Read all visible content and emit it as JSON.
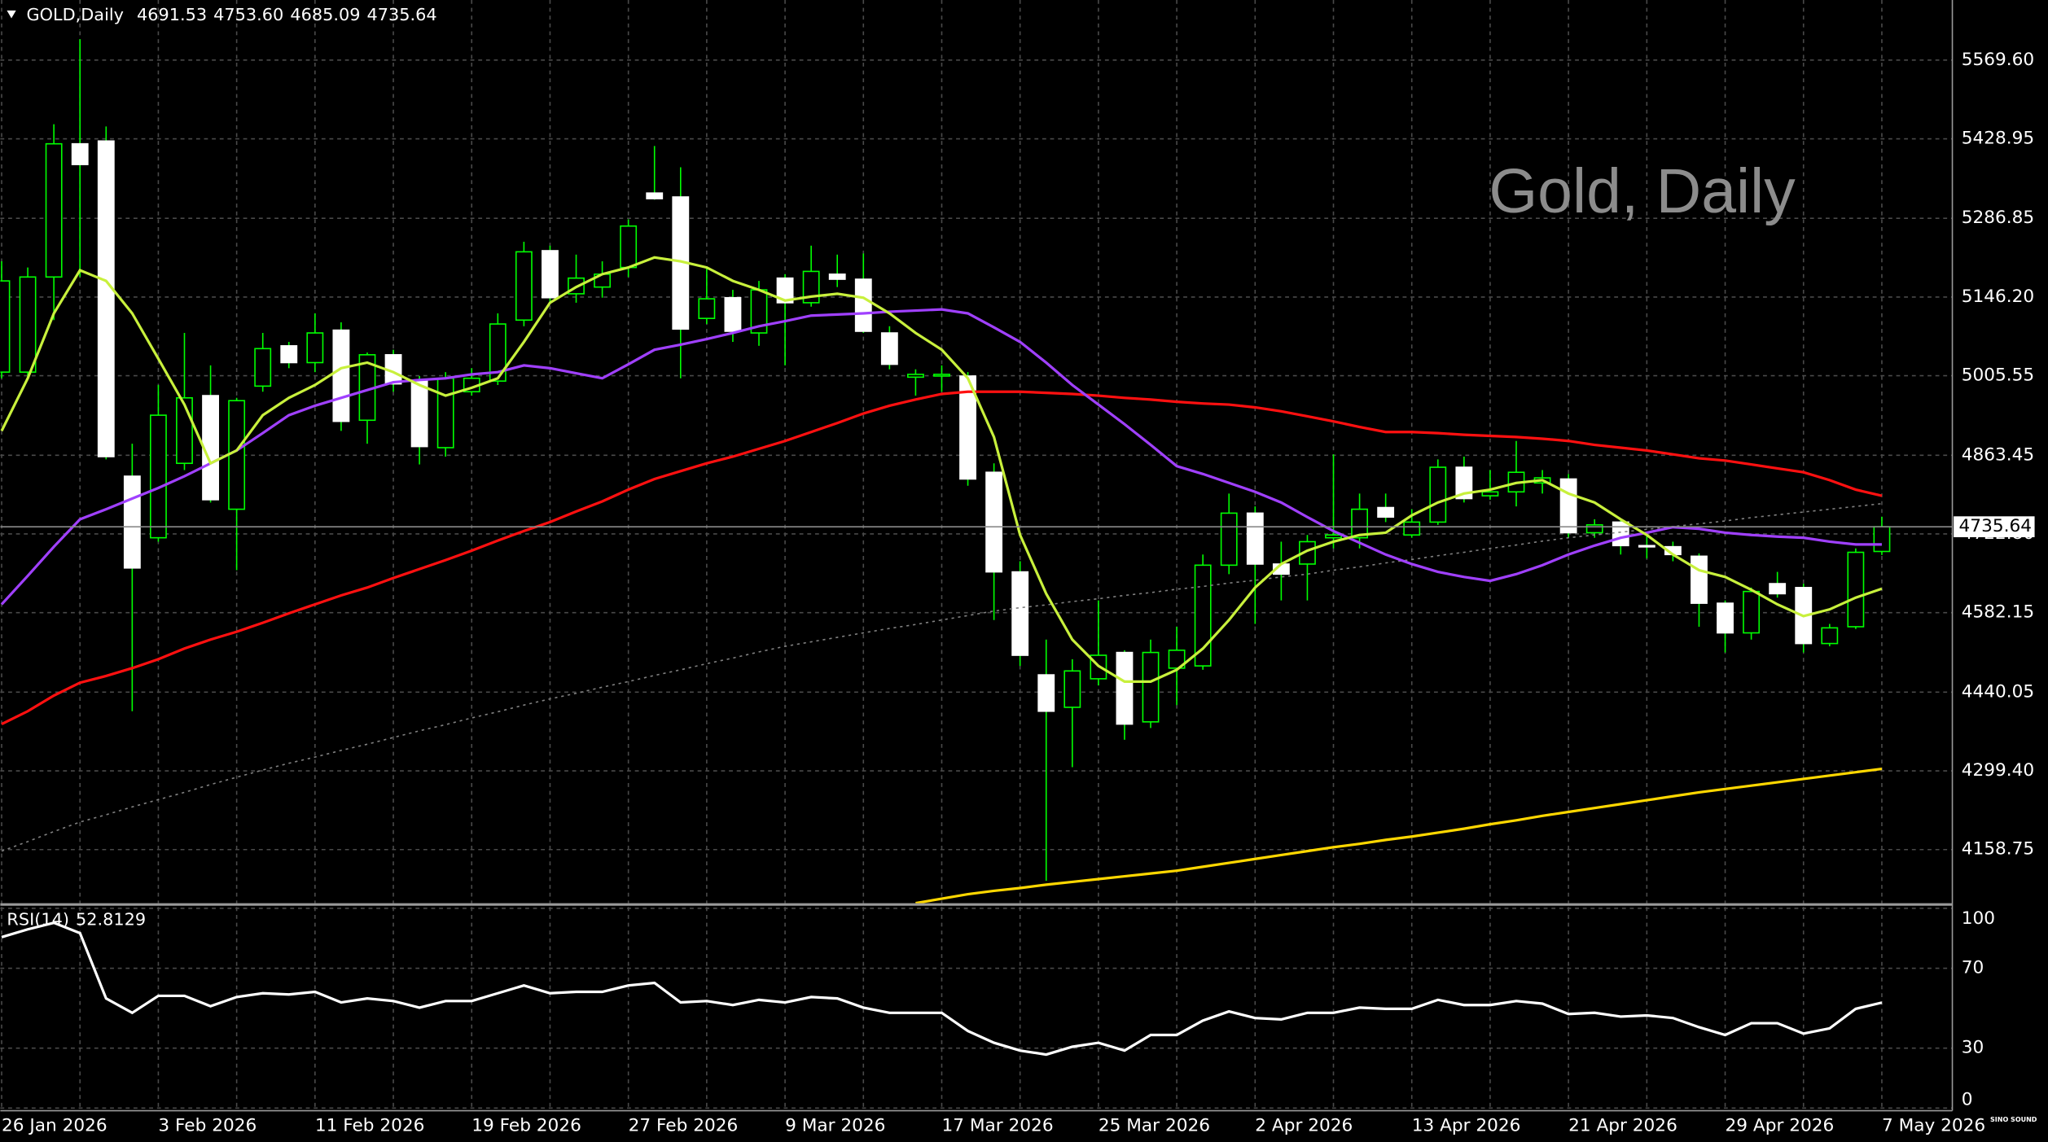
{
  "chart_data": [
    {
      "type": "candlestick",
      "title": "GOLD,Daily",
      "watermark": "Gold, Daily",
      "logo": "SINO SOUND",
      "ohlc_labels": [
        "4691.53",
        "4753.60",
        "4685.09",
        "4735.64"
      ],
      "categories": [
        "26 Jan 2026",
        null,
        null,
        null,
        null,
        null,
        "3 Feb 2026",
        null,
        null,
        null,
        null,
        null,
        "11 Feb 2026",
        null,
        null,
        null,
        null,
        null,
        "19 Feb 2026",
        null,
        null,
        null,
        null,
        null,
        "27 Feb 2026",
        null,
        null,
        null,
        null,
        null,
        "9 Mar 2026",
        null,
        null,
        null,
        null,
        null,
        "17 Mar 2026",
        null,
        null,
        null,
        null,
        null,
        "25 Mar 2026",
        null,
        null,
        null,
        null,
        null,
        "2 Apr 2026",
        null,
        null,
        null,
        null,
        null,
        "13 Apr 2026",
        null,
        null,
        null,
        null,
        null,
        "21 Apr 2026",
        null,
        null,
        null,
        null,
        null,
        "29 Apr 2026",
        null,
        null,
        null,
        null,
        null,
        "7 May 2026"
      ],
      "open": [
        5012,
        5012,
        5182,
        5420,
        5425,
        4826,
        4716,
        4849,
        4970,
        4767,
        4987,
        5059,
        5029,
        5087,
        4926,
        5043,
        4996,
        4877,
        4977,
        4996,
        5105,
        5229,
        5152,
        5164,
        5199,
        5332,
        5325,
        5108,
        5145,
        5082,
        5180,
        5136,
        5187,
        5178,
        5082,
        5003,
        5005,
        5005,
        4833,
        4655,
        4471,
        4413,
        4464,
        4511,
        4387,
        4483,
        4487,
        4667,
        4760,
        4669,
        4669,
        4716,
        4716,
        4770,
        4721,
        4744,
        4842,
        4791,
        4798,
        4814,
        4821,
        4725,
        4744,
        4702,
        4700,
        4683,
        4599,
        4546,
        4634,
        4627,
        4527,
        4557,
        4691.53
      ],
      "high": [
        5210,
        5199,
        5455,
        5607,
        5451,
        4884,
        4989,
        5082,
        5024,
        4966,
        5082,
        5066,
        5117,
        5101,
        5047,
        5052,
        5005,
        5012,
        5019,
        5117,
        5245,
        5238,
        5222,
        5210,
        5285,
        5416,
        5378,
        5199,
        5159,
        5175,
        5187,
        5238,
        5222,
        5224,
        5094,
        5017,
        5024,
        5012,
        4849,
        4674,
        4534,
        4499,
        4604,
        4515,
        4534,
        4557,
        4686,
        4795,
        4772,
        4709,
        4721,
        4865,
        4795,
        4795,
        4767,
        4856,
        4861,
        4837,
        4889,
        4837,
        4830,
        4749,
        4749,
        4725,
        4709,
        4688,
        4604,
        4627,
        4655,
        4634,
        4562,
        4697,
        4753.6
      ],
      "low": [
        5001,
        5001,
        5105,
        5182,
        4856,
        4406,
        4709,
        4837,
        4779,
        4658,
        4977,
        5019,
        5012,
        4907,
        4884,
        4977,
        4847,
        4861,
        4970,
        4989,
        5094,
        5136,
        5136,
        5145,
        5182,
        5320,
        5001,
        5098,
        5066,
        5059,
        5024,
        5129,
        5164,
        5082,
        5017,
        4970,
        4977,
        4809,
        4569,
        4487,
        4103,
        4306,
        4452,
        4355,
        4376,
        4417,
        4480,
        4651,
        4562,
        4604,
        4604,
        4697,
        4697,
        4744,
        4716,
        4739,
        4779,
        4784,
        4772,
        4795,
        4716,
        4716,
        4686,
        4679,
        4674,
        4557,
        4511,
        4534,
        4609,
        4511,
        4522,
        4553,
        4685.09
      ],
      "close": [
        5175,
        5182,
        5420,
        5383,
        4861,
        4662,
        4935,
        4966,
        4784,
        4961,
        5054,
        5029,
        5082,
        4924,
        5043,
        4991,
        4879,
        5001,
        5001,
        5098,
        5227,
        5145,
        5180,
        5187,
        5273,
        5322,
        5089,
        5143,
        5085,
        5159,
        5136,
        5192,
        5178,
        5085,
        5026,
        5008,
        5008,
        4821,
        4655,
        4506,
        4406,
        4478,
        4506,
        4383,
        4511,
        4515,
        4667,
        4760,
        4669,
        4651,
        4709,
        4721,
        4767,
        4753,
        4744,
        4842,
        4786,
        4798,
        4833,
        4823,
        4725,
        4739,
        4702,
        4700,
        4686,
        4599,
        4546,
        4620,
        4616,
        4527,
        4555,
        4690,
        4735.64
      ],
      "bull_color": "#00ff00",
      "bear_color": "#ffffff",
      "overlays": [
        {
          "color": "#808080",
          "dashed": true,
          "values": [
            4156,
            4173,
            4191,
            4208,
            4221,
            4235,
            4248,
            4261,
            4275,
            4288,
            4301,
            4313,
            4324,
            4336,
            4347,
            4359,
            4371,
            4382,
            4394,
            4405,
            4417,
            4428,
            4438,
            4449,
            4459,
            4470,
            4480,
            4491,
            4501,
            4512,
            4522,
            4530,
            4538,
            4546,
            4554,
            4561,
            4569,
            4577,
            4585,
            4591,
            4596,
            4602,
            4607,
            4613,
            4618,
            4624,
            4629,
            4635,
            4640,
            4646,
            4651,
            4658,
            4664,
            4671,
            4677,
            4684,
            4690,
            4697,
            4703,
            4710,
            4716,
            4721,
            4726,
            4731,
            4736,
            4741,
            4746,
            4752,
            4757,
            4762,
            4767,
            4772,
            4777
          ]
        },
        {
          "color": "#ffd700",
          "values": [
            null,
            null,
            null,
            null,
            null,
            null,
            null,
            null,
            null,
            null,
            null,
            null,
            null,
            null,
            null,
            null,
            null,
            null,
            null,
            null,
            null,
            null,
            null,
            null,
            null,
            null,
            null,
            null,
            null,
            null,
            null,
            null,
            null,
            null,
            null,
            4063,
            4071,
            4079,
            4085,
            4090,
            4096,
            4101,
            4106,
            4111,
            4116,
            4121,
            4128,
            4135,
            4142,
            4149,
            4156,
            4163,
            4169,
            4176,
            4182,
            4189,
            4196,
            4204,
            4211,
            4219,
            4226,
            4233,
            4240,
            4247,
            4254,
            4261,
            4267,
            4273,
            4279,
            4285,
            4291,
            4297,
            4303
          ]
        },
        {
          "color": "#ff1010",
          "values": [
            4383,
            4406,
            4434,
            4457,
            4469,
            4483,
            4499,
            4518,
            4534,
            4548,
            4564,
            4581,
            4597,
            4613,
            4627,
            4644,
            4660,
            4676,
            4693,
            4711,
            4728,
            4744,
            4763,
            4781,
            4802,
            4821,
            4835,
            4849,
            4861,
            4875,
            4889,
            4905,
            4921,
            4938,
            4952,
            4963,
            4973,
            4977,
            4977,
            4977,
            4975,
            4973,
            4970,
            4966,
            4963,
            4959,
            4956,
            4954,
            4949,
            4942,
            4933,
            4924,
            4914,
            4905,
            4905,
            4903,
            4900,
            4898,
            4896,
            4893,
            4889,
            4882,
            4877,
            4872,
            4865,
            4858,
            4854,
            4847,
            4840,
            4833,
            4819,
            4802,
            4791
          ]
        },
        {
          "color": "#a040ff",
          "values": [
            4597,
            4648,
            4700,
            4749,
            4767,
            4786,
            4805,
            4826,
            4849,
            4872,
            4903,
            4935,
            4952,
            4966,
            4980,
            4994,
            4998,
            5001,
            5008,
            5012,
            5024,
            5019,
            5010,
            5001,
            5026,
            5052,
            5061,
            5071,
            5082,
            5094,
            5103,
            5113,
            5115,
            5117,
            5120,
            5122,
            5124,
            5117,
            5092,
            5066,
            5029,
            4989,
            4954,
            4919,
            4882,
            4844,
            4830,
            4814,
            4798,
            4779,
            4753,
            4728,
            4707,
            4686,
            4669,
            4655,
            4646,
            4639,
            4651,
            4667,
            4686,
            4702,
            4716,
            4725,
            4735,
            4732,
            4725,
            4721,
            4718,
            4716,
            4709,
            4704,
            4704
          ]
        },
        {
          "color": "#c8f03c",
          "values": [
            4907,
            5001,
            5117,
            5194,
            5175,
            5117,
            5036,
            4954,
            4849,
            4872,
            4935,
            4966,
            4989,
            5019,
            5029,
            5012,
            4989,
            4970,
            4984,
            5001,
            5066,
            5136,
            5164,
            5187,
            5199,
            5217,
            5210,
            5199,
            5175,
            5159,
            5140,
            5147,
            5152,
            5145,
            5117,
            5082,
            5052,
            5001,
            4896,
            4721,
            4616,
            4534,
            4487,
            4459,
            4459,
            4480,
            4518,
            4569,
            4627,
            4669,
            4693,
            4709,
            4721,
            4725,
            4756,
            4779,
            4795,
            4802,
            4814,
            4819,
            4795,
            4779,
            4749,
            4721,
            4686,
            4658,
            4646,
            4623,
            4597,
            4576,
            4588,
            4609,
            4625
          ]
        }
      ],
      "ylim": [
        4063,
        5677
      ],
      "yticks": [
        {
          "value": 5569.6,
          "label": "5569.60"
        },
        {
          "value": 5428.95,
          "label": "5428.95"
        },
        {
          "value": 5286.85,
          "label": "5286.85"
        },
        {
          "value": 5146.2,
          "label": "5146.20"
        },
        {
          "value": 5005.55,
          "label": "5005.55"
        },
        {
          "value": 4863.45,
          "label": "4863.45"
        },
        {
          "value": 4722.8,
          "label": "4722.80"
        },
        {
          "value": 4582.15,
          "label": "4582.15"
        },
        {
          "value": 4440.05,
          "label": "4440.05"
        },
        {
          "value": 4299.4,
          "label": "4299.40"
        },
        {
          "value": 4158.75,
          "label": "4158.75"
        }
      ],
      "grid": true
    },
    {
      "type": "line",
      "title": "RSI(14)",
      "color": "#ffffff",
      "values": [
        85.6,
        89.5,
        92.8,
        87.6,
        54.9,
        47.7,
        56.2,
        56.2,
        51.0,
        55.6,
        57.5,
        56.9,
        58.2,
        52.9,
        54.9,
        53.6,
        50.3,
        53.6,
        53.6,
        57.5,
        61.4,
        57.5,
        58.2,
        58.2,
        61.4,
        62.7,
        52.9,
        53.6,
        51.6,
        54.2,
        52.9,
        55.6,
        54.9,
        50.3,
        47.7,
        47.7,
        47.7,
        38.6,
        32.7,
        28.8,
        26.8,
        30.7,
        32.7,
        28.8,
        36.6,
        36.6,
        43.8,
        48.4,
        45.1,
        44.4,
        47.7,
        47.7,
        50.3,
        49.7,
        49.7,
        54.2,
        51.6,
        51.6,
        53.6,
        52.3,
        47.1,
        47.7,
        45.8,
        46.4,
        45.1,
        40.5,
        36.6,
        42.5,
        42.5,
        37.3,
        39.9,
        49.7,
        52.8129
      ],
      "ylim": [
        0,
        100
      ],
      "yticks": [
        100,
        70,
        30,
        0
      ],
      "grid": true
    }
  ]
}
